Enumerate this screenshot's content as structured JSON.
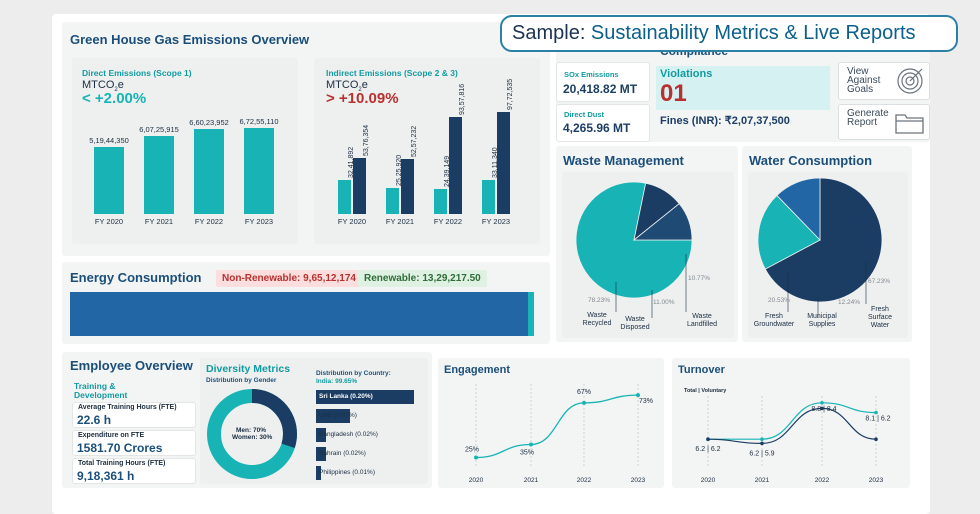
{
  "banner": {
    "prefix": "Sample:",
    "text": " Sustainability Metrics & Live Reports"
  },
  "ghg": {
    "title": "Green House Gas Emissions Overview",
    "scope1": {
      "label": "Direct Emissions (Scope 1)",
      "unit_main": "MTCO",
      "unit_sub": "2",
      "unit_tail": "e",
      "change": "< +2.00%",
      "categories": [
        "FY 2020",
        "FY 2021",
        "FY 2022",
        "FY 2023"
      ],
      "values": [
        519.4435,
        607.25915,
        660.23952,
        672.5511
      ],
      "value_labels": [
        "5,19,44,350",
        "6,07,25,915",
        "6,60,23,952",
        "6,72,55,110"
      ]
    },
    "scope23": {
      "label": "Indirect Emissions (Scope 2 & 3)",
      "unit_main": "MTCO",
      "unit_sub": "2",
      "unit_tail": "e",
      "change": "> +10.09%",
      "categories": [
        "FY 2020",
        "FY 2021",
        "FY 2022",
        "FY 2023"
      ],
      "scope2": [
        32.41892,
        25.2592,
        24.39149,
        33.1134
      ],
      "scope3": [
        53.76354,
        52.57232,
        93.57816,
        97.72535
      ],
      "scope2_labels": [
        "32,41,892",
        "25,25,920",
        "24,39,149",
        "33,11,340"
      ],
      "scope3_labels": [
        "53,76,354",
        "52,57,232",
        "93,57,816",
        "97,72,535"
      ]
    }
  },
  "compliance": {
    "title": "Compliance",
    "sox_label": "SOx Emissions",
    "sox_value": "20,418.82 MT",
    "dust_label": "Direct Dust",
    "dust_value": "4,265.96 MT",
    "violations_label": "Violations",
    "violations_value": "01",
    "fines": "Fines (INR): ₹2,07,37,500",
    "view_goals": "View Against Goals",
    "generate_report": "Generate Report"
  },
  "waste": {
    "title": "Waste Management",
    "slices": [
      {
        "name": "Waste Recycled",
        "pct": "78.23%",
        "value": 78.23
      },
      {
        "name": "Waste Disposed",
        "pct": "11.00%",
        "value": 11.0
      },
      {
        "name": "Waste Landfilled",
        "pct": "10.77%",
        "value": 10.77
      }
    ]
  },
  "water": {
    "title": "Water Consumption",
    "slices": [
      {
        "name": "Fresh Surface Water",
        "pct": "67.23%",
        "value": 67.23
      },
      {
        "name": "Fresh Groundwater",
        "pct": "20.53%",
        "value": 20.53
      },
      {
        "name": "Municipal Supplies",
        "pct": "12.24%",
        "value": 12.24
      }
    ]
  },
  "energy": {
    "title": "Energy Consumption",
    "non_renewable": "Non-Renewable: 9,65,12,174",
    "renewable": "Renewable: 13,29,217.50",
    "renewable_share": 0.0136
  },
  "employee": {
    "title": "Employee Overview",
    "training_title": "Training & Development",
    "avg_label": "Average Training Hours (FTE)",
    "avg_value": "22.6 h",
    "exp_label": "Expenditure on FTE",
    "exp_value": "1581.70 Crores",
    "total_label": "Total Training Hours (FTE)",
    "total_value": "9,18,361 h"
  },
  "diversity": {
    "title": "Diversity Metrics",
    "gender_label": "Distribution by Gender",
    "gender_center": [
      "Men: 70%",
      "Women: 30%"
    ],
    "men": 70,
    "women": 30,
    "country_label": "Distribution by Country:",
    "country_top": "India: 99.65%",
    "countries": [
      {
        "name": "Sri Lanka (0.20%)",
        "value": 0.2
      },
      {
        "name": "UAE (0.07%)",
        "value": 0.07
      },
      {
        "name": "Bangladesh (0.02%)",
        "value": 0.02
      },
      {
        "name": "Bahrain (0.02%)",
        "value": 0.02
      },
      {
        "name": "Philippines (0.01%)",
        "value": 0.01
      }
    ]
  },
  "engagement": {
    "title": "Engagement",
    "years": [
      "2020",
      "2021",
      "2022",
      "2023"
    ],
    "values": [
      25,
      35,
      67,
      73
    ],
    "labels": [
      "25%",
      "35%",
      "67%",
      "73%"
    ]
  },
  "turnover": {
    "title": "Turnover",
    "legend": "Total | Voluntary",
    "years": [
      "2020",
      "2021",
      "2022",
      "2023"
    ],
    "total": [
      6.2,
      6.2,
      8.8,
      8.1
    ],
    "voluntary": [
      6.2,
      5.9,
      8.4,
      6.2
    ],
    "labels": [
      "6.2 | 6.2",
      "6.2 | 5.9",
      "8.8 | 8.4",
      "8.1 | 6.2"
    ]
  },
  "colors": {
    "teal": "#17b3b5",
    "navy": "#1b3d63",
    "blue": "#2266a6",
    "title": "#1b4f7a",
    "red": "#b8312f"
  }
}
